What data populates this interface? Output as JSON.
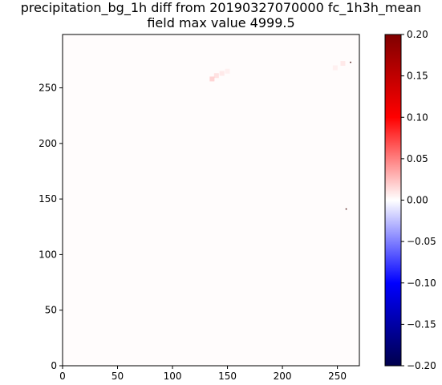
{
  "chart_data": {
    "type": "heatmap",
    "title": "precipitation_bg_1h diff from 20190327070000 fc_1h3h_mean",
    "subtitle": "field max value 4999.5",
    "xlabel": "",
    "ylabel": "",
    "xlim": [
      0,
      270
    ],
    "ylim": [
      0,
      298
    ],
    "x_ticks": [
      0,
      50,
      100,
      150,
      200,
      250
    ],
    "y_ticks": [
      0,
      50,
      100,
      150,
      200,
      250
    ],
    "grid": false,
    "colorbar": {
      "cmap": "seismic",
      "vmin": -0.2,
      "vmax": 0.2,
      "ticks": [
        0.2,
        0.15,
        0.1,
        0.05,
        0.0,
        -0.05,
        -0.1,
        -0.15,
        -0.2
      ],
      "tick_labels": [
        "0.20",
        "0.15",
        "0.10",
        "0.05",
        "0.00",
        "−0.05",
        "−0.10",
        "−0.15",
        "−0.20"
      ]
    },
    "background_value": 0.002,
    "features": [
      {
        "x": 140,
        "y": 261,
        "value": 0.02
      },
      {
        "x": 136,
        "y": 258,
        "value": 0.03
      },
      {
        "x": 145,
        "y": 263,
        "value": 0.015
      },
      {
        "x": 150,
        "y": 265,
        "value": 0.01
      },
      {
        "x": 255,
        "y": 272,
        "value": 0.015
      },
      {
        "x": 248,
        "y": 268,
        "value": 0.01
      },
      {
        "x": 262,
        "y": 273,
        "value": 4999.5
      },
      {
        "x": 258,
        "y": 141,
        "value": 4999.5
      }
    ]
  }
}
